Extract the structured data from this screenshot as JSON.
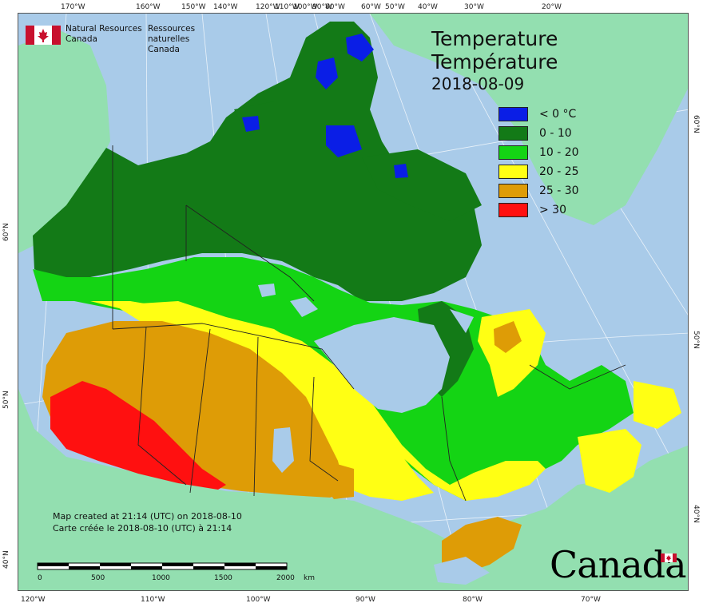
{
  "header": {
    "agency_en_line1": "Natural Resources",
    "agency_en_line2": "Canada",
    "agency_fr_line1": "Ressources naturelles",
    "agency_fr_line2": "Canada"
  },
  "title": {
    "en": "Temperature",
    "fr": "Température",
    "date": "2018-08-09"
  },
  "legend": [
    {
      "label": "< 0 °C",
      "color": "#0a1ee6"
    },
    {
      "label": "0 - 10",
      "color": "#137a17"
    },
    {
      "label": "10 - 20",
      "color": "#14d414"
    },
    {
      "label": "20 - 25",
      "color": "#ffff14"
    },
    {
      "label": "25 - 30",
      "color": "#de9c06"
    },
    {
      "label": "> 30",
      "color": "#ff1010"
    }
  ],
  "notes": {
    "line_en": "Map created at 21:14 (UTC) on 2018-08-10",
    "line_fr": "Carte créée le 2018-08-10 (UTC) à 21:14"
  },
  "scale": {
    "ticks": [
      "0",
      "500",
      "1000",
      "1500",
      "2000"
    ],
    "unit": "km"
  },
  "graticule": {
    "top": [
      "170°W",
      "160°W",
      "150°W",
      "140°W",
      "120°W",
      "110°W",
      "100°W",
      "90°W",
      "80°W",
      "60°W",
      "50°W",
      "40°W",
      "30°W",
      "20°W"
    ],
    "bottom": [
      "120°W",
      "110°W",
      "100°W",
      "90°W",
      "80°W",
      "70°W"
    ],
    "left": [
      "60°N",
      "50°N",
      "40°N"
    ],
    "right": [
      "60°N",
      "50°N",
      "40°N"
    ]
  },
  "wordmark": "Canada",
  "colors": {
    "ocean": "#a9cbe9",
    "foreign_land": "#93dfb0"
  }
}
